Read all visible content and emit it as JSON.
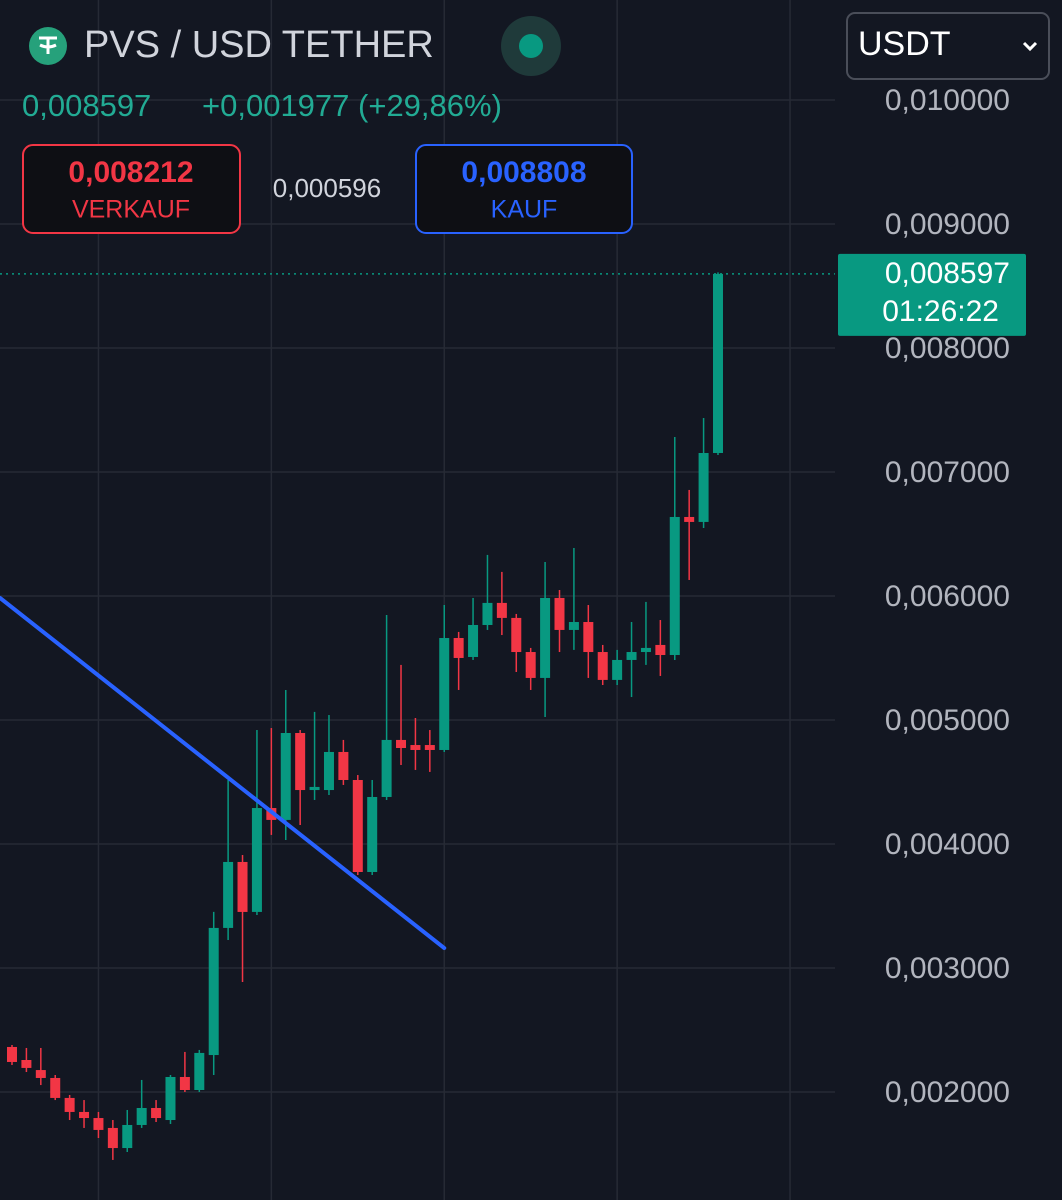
{
  "chart_data": {
    "type": "candlestick",
    "title": "PVS / USD TETHER",
    "currency": "USDT",
    "price": "0,008597",
    "change": "+0,001977 (+29,86%)",
    "sell": {
      "price": "0,008212",
      "label": "VERKAUF"
    },
    "spread": "0,000596",
    "buy": {
      "price": "0,008808",
      "label": "KAUF"
    },
    "last_price": {
      "value": 0.008597,
      "label": "0,008597"
    },
    "countdown": "01:26:22",
    "up_color": "#089981",
    "down_color": "#f23645",
    "grid": true,
    "ylim": [
      0.001129,
      0.010806
    ],
    "yticks": [
      {
        "value": 0.002,
        "label": "0,002000"
      },
      {
        "value": 0.003,
        "label": "0,003000"
      },
      {
        "value": 0.004,
        "label": "0,004000"
      },
      {
        "value": 0.005,
        "label": "0,005000"
      },
      {
        "value": 0.006,
        "label": "0,006000"
      },
      {
        "value": 0.007,
        "label": "0,007000"
      },
      {
        "value": 0.008,
        "label": "0,008000"
      },
      {
        "value": 0.009,
        "label": "0,009000"
      },
      {
        "value": 0.01,
        "label": "0,010000"
      }
    ],
    "open": [
      0.002363,
      0.002258,
      0.002177,
      0.002113,
      0.001952,
      0.001839,
      0.00179,
      0.00171,
      0.001548,
      0.001734,
      0.001871,
      0.001774,
      0.002121,
      0.002016,
      0.002298,
      0.003323,
      0.003855,
      0.003452,
      0.00429,
      0.004194,
      0.004895,
      0.004435,
      0.004435,
      0.004742,
      0.004516,
      0.003774,
      0.004379,
      0.004839,
      0.004798,
      0.004798,
      0.004758,
      0.005661,
      0.005508,
      0.005766,
      0.005944,
      0.005823,
      0.005548,
      0.005339,
      0.005984,
      0.005726,
      0.00579,
      0.005548,
      0.005323,
      0.005484,
      0.005548,
      0.005605,
      0.005524,
      0.006637,
      0.006597,
      0.007153
    ],
    "high": [
      0.002379,
      0.002355,
      0.002355,
      0.002137,
      0.001976,
      0.001935,
      0.001839,
      0.001774,
      0.001855,
      0.002097,
      0.001935,
      0.002137,
      0.002323,
      0.002339,
      0.003452,
      0.004516,
      0.003911,
      0.004919,
      0.004935,
      0.005242,
      0.004919,
      0.005065,
      0.00504,
      0.004839,
      0.004556,
      0.004516,
      0.005847,
      0.005444,
      0.005016,
      0.004919,
      0.005927,
      0.00571,
      0.005984,
      0.006331,
      0.006194,
      0.005855,
      0.005581,
      0.006274,
      0.006048,
      0.006387,
      0.005927,
      0.005605,
      0.005565,
      0.00579,
      0.005952,
      0.005806,
      0.007282,
      0.006855,
      0.007435,
      0.00861
    ],
    "low": [
      0.002218,
      0.002161,
      0.002056,
      0.001935,
      0.001774,
      0.00171,
      0.001629,
      0.001452,
      0.001516,
      0.00171,
      0.001758,
      0.001742,
      0.002,
      0.002,
      0.002137,
      0.003226,
      0.002887,
      0.003427,
      0.004073,
      0.004032,
      0.004153,
      0.004355,
      0.004395,
      0.004476,
      0.00375,
      0.00375,
      0.004355,
      0.004637,
      0.004597,
      0.004581,
      0.004742,
      0.005242,
      0.005484,
      0.005726,
      0.005685,
      0.005387,
      0.005242,
      0.005024,
      0.005548,
      0.005565,
      0.005339,
      0.005282,
      0.005282,
      0.005185,
      0.005444,
      0.005355,
      0.005484,
      0.006129,
      0.006548,
      0.007137
    ],
    "close": [
      0.002242,
      0.002194,
      0.002113,
      0.001952,
      0.001839,
      0.00179,
      0.001694,
      0.001548,
      0.001734,
      0.001871,
      0.00179,
      0.002121,
      0.002016,
      0.002315,
      0.003323,
      0.003855,
      0.003452,
      0.00429,
      0.004194,
      0.004895,
      0.004435,
      0.00446,
      0.004742,
      0.004516,
      0.003774,
      0.004379,
      0.004839,
      0.004774,
      0.004758,
      0.004758,
      0.005661,
      0.0055,
      0.005766,
      0.005944,
      0.005823,
      0.005548,
      0.005339,
      0.005984,
      0.005726,
      0.00579,
      0.005548,
      0.005323,
      0.005484,
      0.005548,
      0.005581,
      0.005524,
      0.006637,
      0.006597,
      0.007153,
      0.008597
    ],
    "trendline": {
      "color": "#2962ff",
      "x": [
        -0.83,
        30
      ],
      "values": [
        0.005984,
        0.003161
      ]
    }
  }
}
